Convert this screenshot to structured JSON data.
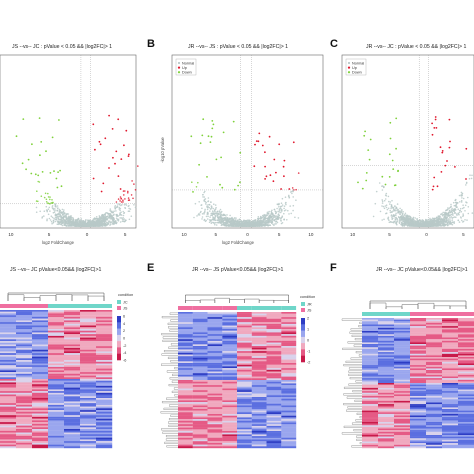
{
  "chart_data": [
    {
      "type": "scatter",
      "panel": "",
      "title": "JS --vs-- JC : pValue < 0.05 && |log2FC|> 1",
      "xlabel": "log2 FoldChange",
      "ylabel": "",
      "xlim": [
        -13,
        7
      ],
      "xticks": [
        "10",
        "5",
        "0",
        "5"
      ],
      "legend": [],
      "colors": {
        "up": "#e0182d",
        "down": "#7fd13b",
        "ns": "#b9c9c8"
      }
    },
    {
      "type": "scatter",
      "panel": "B",
      "title": "JR --vs-- JS : pValue < 0.05 && |log2FC|> 1",
      "xlabel": "log2 FoldChange",
      "ylabel": "-log10 pValue",
      "xlim": [
        -11,
        12
      ],
      "xticks": [
        "10",
        "5",
        "0",
        "5",
        "10"
      ],
      "legend": [
        "Normal",
        "Up",
        "Down"
      ],
      "colors": {
        "up": "#e0182d",
        "down": "#7fd13b",
        "ns": "#b9c9c8"
      }
    },
    {
      "type": "scatter",
      "panel": "C",
      "title": "JR --vs-- JC : pValue < 0.05 && |log2FC|> 1",
      "xlabel": "",
      "ylabel": "",
      "xlim": [
        -11,
        8
      ],
      "xticks": [
        "10",
        "5",
        "0",
        "5"
      ],
      "legend": [
        "Normal",
        "Up",
        "Down"
      ],
      "colors": {
        "up": "#e0182d",
        "down": "#7fd13b",
        "ns": "#b9c9c8"
      }
    },
    {
      "type": "heatmap",
      "panel": "",
      "title": "JS --vs-- JC pValue<0.05&& |log2FC|>1",
      "samples": [
        "",
        "",
        "",
        "",
        "",
        "",
        ""
      ],
      "legend_title": "condition",
      "legend": [
        "JC",
        "JS"
      ],
      "scale_ticks": [
        "6",
        "4",
        "2",
        "0",
        "-2",
        "-4",
        "-6"
      ],
      "groups": [
        "#ef6fa0",
        "#ef6fa0",
        "#ef6fa0",
        "#6fd6c9",
        "#6fd6c9",
        "#6fd6c9",
        "#6fd6c9"
      ]
    },
    {
      "type": "heatmap",
      "panel": "E",
      "title": "JR --vs-- JS pValue<0.05&& |log2FC|>1",
      "samples": [
        "",
        "",
        "",
        "",
        "",
        "",
        "",
        ""
      ],
      "legend_title": "condition",
      "legend": [
        "JR",
        "JS"
      ],
      "scale_ticks": [
        "2",
        "1",
        "0",
        "-1",
        "-2"
      ],
      "groups": [
        "#ef6fa0",
        "#ef6fa0",
        "#ef6fa0",
        "#ef6fa0",
        "#6fd6c9",
        "#6fd6c9",
        "#6fd6c9",
        "#6fd6c9"
      ]
    },
    {
      "type": "heatmap",
      "panel": "F",
      "title": "JR --vs-- JC pValue<0.05&& |log2FC|>1",
      "samples": [
        "",
        "",
        "",
        "",
        "",
        "",
        ""
      ],
      "legend_title": "",
      "legend": [],
      "scale_ticks": [],
      "groups": [
        "#6fd6c9",
        "#6fd6c9",
        "#6fd6c9",
        "#ef6fa0",
        "#ef6fa0",
        "#ef6fa0",
        "#ef6fa0"
      ]
    }
  ]
}
